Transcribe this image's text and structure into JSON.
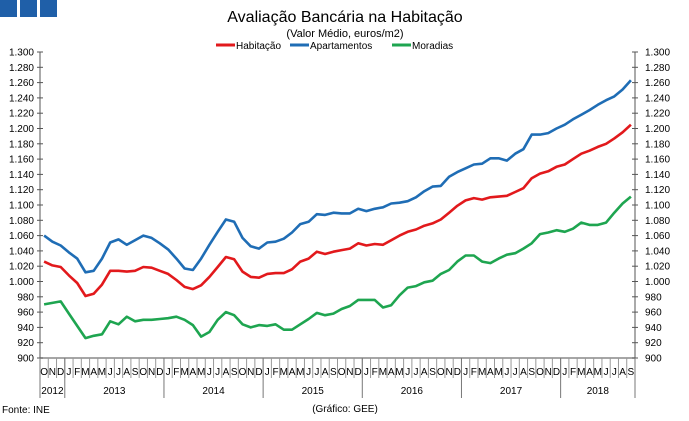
{
  "chart_data": {
    "type": "line",
    "title": "Avaliação Bancária na Habitação",
    "subtitle": "(Valor Médio, euros/m2)",
    "source": "Fonte: INE",
    "credit": "(Gráfico: GEE)",
    "ylim": [
      900,
      1300
    ],
    "ytick_step": 20,
    "ytick_labels_both_sides": true,
    "grid": false,
    "legend": "top",
    "month_labels": [
      "O",
      "N",
      "D",
      "J",
      "F",
      "M",
      "A",
      "M",
      "J",
      "J",
      "A",
      "S",
      "O",
      "N",
      "D",
      "J",
      "F",
      "M",
      "A",
      "M",
      "J",
      "J",
      "A",
      "S",
      "O",
      "N",
      "D",
      "J",
      "F",
      "M",
      "A",
      "M",
      "J",
      "J",
      "A",
      "S",
      "O",
      "N",
      "D",
      "J",
      "F",
      "M",
      "A",
      "M",
      "J",
      "J",
      "A",
      "S",
      "O",
      "N",
      "D",
      "J",
      "F",
      "M",
      "A",
      "M",
      "J",
      "J",
      "A",
      "S",
      "O",
      "N",
      "D",
      "J",
      "F",
      "M",
      "A",
      "M",
      "J",
      "J",
      "A",
      "S"
    ],
    "years": [
      {
        "label": "2012",
        "months": 3
      },
      {
        "label": "2013",
        "months": 12
      },
      {
        "label": "2014",
        "months": 12
      },
      {
        "label": "2015",
        "months": 12
      },
      {
        "label": "2016",
        "months": 12
      },
      {
        "label": "2017",
        "months": 12
      },
      {
        "label": "2018",
        "months": 9
      }
    ],
    "series": [
      {
        "name": "Habitação",
        "color": "#e2191c",
        "values": [
          1026,
          1021,
          1019,
          1008,
          998,
          981,
          984,
          996,
          1014,
          1014,
          1013,
          1014,
          1019,
          1018,
          1014,
          1010,
          1002,
          993,
          990,
          995,
          1006,
          1019,
          1032,
          1029,
          1013,
          1006,
          1005,
          1010,
          1011,
          1011,
          1016,
          1026,
          1030,
          1039,
          1036,
          1039,
          1041,
          1043,
          1050,
          1047,
          1049,
          1048,
          1054,
          1060,
          1065,
          1068,
          1073,
          1076,
          1081,
          1090,
          1099,
          1106,
          1109,
          1107,
          1110,
          1111,
          1112,
          1117,
          1122,
          1135,
          1141,
          1144,
          1150,
          1153,
          1160,
          1167,
          1171,
          1176,
          1180,
          1187,
          1195,
          1205
        ]
      },
      {
        "name": "Apartamentos",
        "color": "#1f6db5",
        "values": [
          1060,
          1052,
          1047,
          1038,
          1030,
          1012,
          1014,
          1030,
          1051,
          1055,
          1048,
          1054,
          1060,
          1057,
          1050,
          1042,
          1030,
          1017,
          1015,
          1030,
          1048,
          1065,
          1081,
          1078,
          1057,
          1046,
          1043,
          1051,
          1052,
          1056,
          1064,
          1075,
          1078,
          1088,
          1087,
          1090,
          1089,
          1089,
          1095,
          1092,
          1095,
          1097,
          1102,
          1103,
          1105,
          1110,
          1118,
          1124,
          1125,
          1137,
          1143,
          1148,
          1153,
          1154,
          1161,
          1161,
          1158,
          1167,
          1173,
          1192,
          1192,
          1194,
          1200,
          1205,
          1212,
          1218,
          1224,
          1231,
          1237,
          1242,
          1251,
          1263
        ]
      },
      {
        "name": "Moradias",
        "color": "#1ea550",
        "values": [
          970,
          972,
          974,
          958,
          942,
          926,
          929,
          931,
          948,
          944,
          954,
          948,
          950,
          950,
          951,
          952,
          954,
          950,
          943,
          928,
          934,
          950,
          960,
          956,
          944,
          940,
          943,
          942,
          944,
          937,
          937,
          944,
          951,
          959,
          956,
          958,
          964,
          968,
          976,
          976,
          976,
          966,
          969,
          982,
          992,
          994,
          999,
          1001,
          1010,
          1015,
          1026,
          1034,
          1034,
          1026,
          1024,
          1030,
          1035,
          1037,
          1043,
          1050,
          1062,
          1064,
          1067,
          1065,
          1069,
          1077,
          1074,
          1074,
          1077,
          1090,
          1102,
          1111
        ]
      }
    ]
  },
  "logo": {
    "color": "#1f5fa8"
  }
}
